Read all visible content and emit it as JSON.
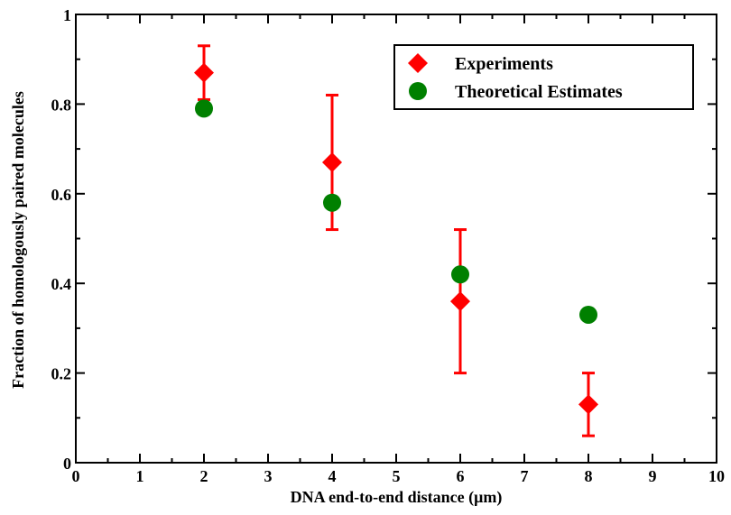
{
  "chart_data": {
    "type": "scatter",
    "xlabel": "DNA end-to-end distance (μm)",
    "ylabel": "Fraction of homologously paired molecules",
    "xlim": [
      0,
      10
    ],
    "ylim": [
      0,
      1
    ],
    "x_ticks": [
      0,
      1,
      2,
      3,
      4,
      5,
      6,
      7,
      8,
      9,
      10
    ],
    "y_ticks": [
      0,
      0.2,
      0.4,
      0.6,
      0.8,
      1
    ],
    "x_tick_labels": [
      "0",
      "1",
      "2",
      "3",
      "4",
      "5",
      "6",
      "7",
      "8",
      "9",
      "10"
    ],
    "y_tick_labels": [
      "0",
      "0.2",
      "0.4",
      "0.6",
      "0.8",
      "1"
    ],
    "grid": false,
    "legend_position": "top-right",
    "series": [
      {
        "name": "Experiments",
        "marker": "diamond",
        "color": "#ff0000",
        "points": [
          {
            "x": 2,
            "y": 0.87,
            "err_low": 0.81,
            "err_high": 0.93
          },
          {
            "x": 4,
            "y": 0.67,
            "err_low": 0.52,
            "err_high": 0.82
          },
          {
            "x": 6,
            "y": 0.36,
            "err_low": 0.2,
            "err_high": 0.52
          },
          {
            "x": 8,
            "y": 0.13,
            "err_low": 0.06,
            "err_high": 0.2
          }
        ]
      },
      {
        "name": "Theoretical Estimates",
        "marker": "circle",
        "color": "#008000",
        "points": [
          {
            "x": 2,
            "y": 0.79
          },
          {
            "x": 4,
            "y": 0.58
          },
          {
            "x": 6,
            "y": 0.42
          },
          {
            "x": 8,
            "y": 0.33
          }
        ]
      }
    ]
  }
}
